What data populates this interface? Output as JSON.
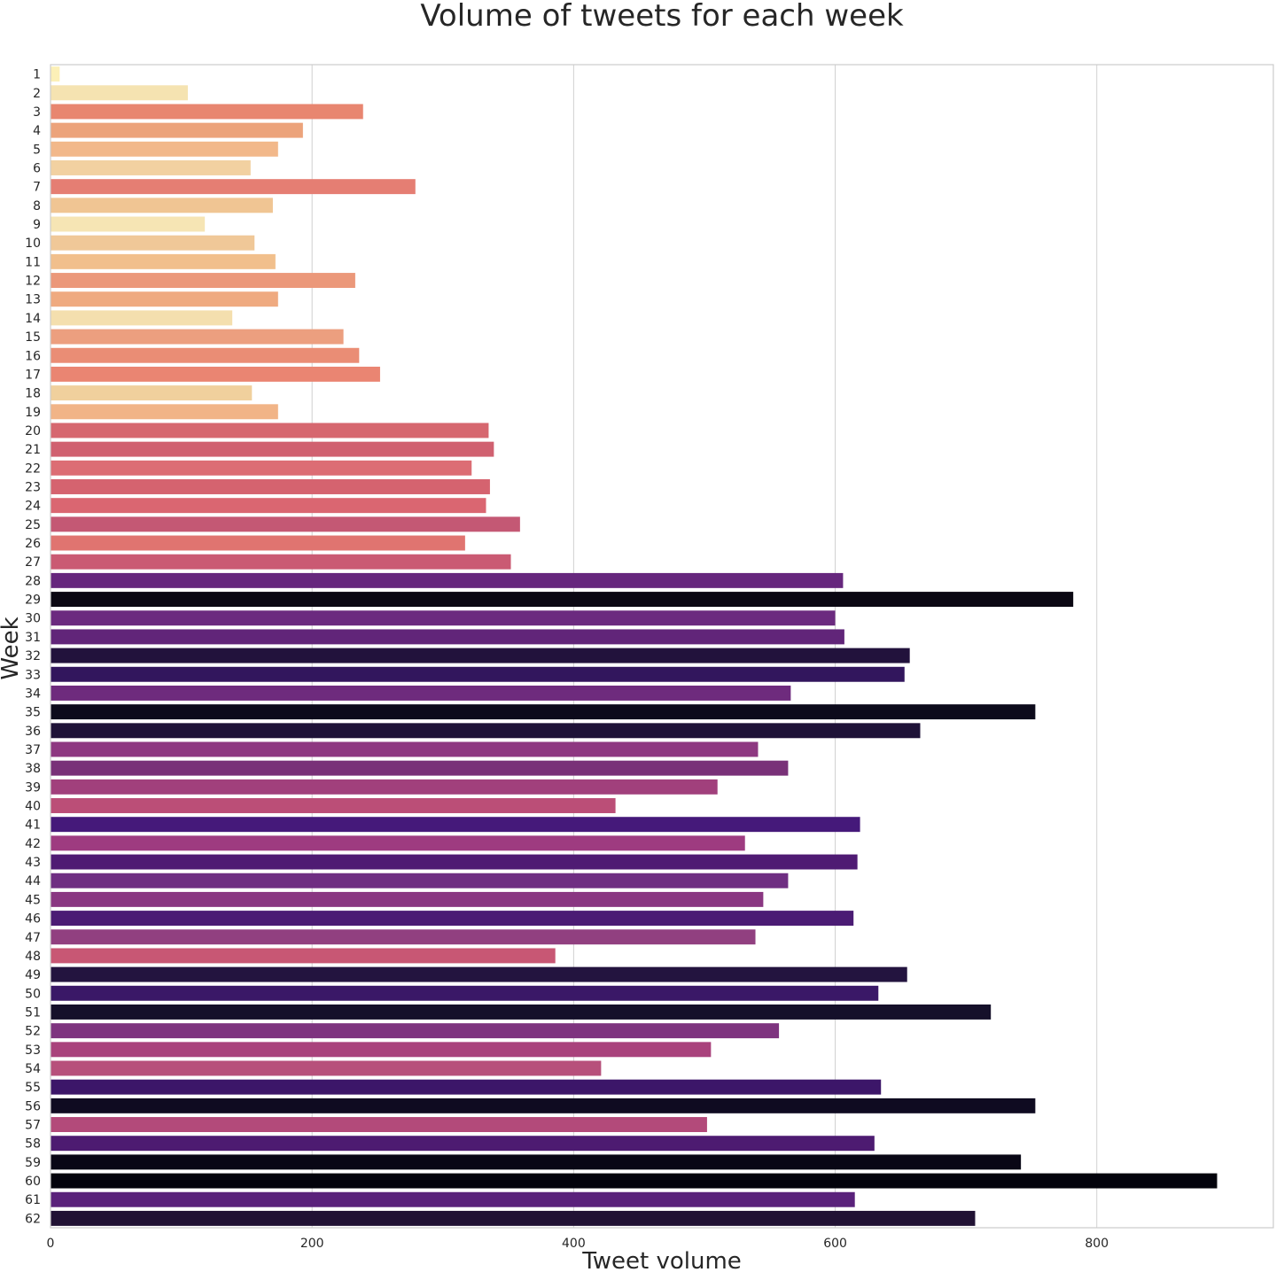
{
  "chart_data": {
    "type": "bar",
    "orientation": "horizontal",
    "title": "Volume of tweets for each week",
    "xlabel": "Tweet volume",
    "ylabel": "Week",
    "xlim": [
      0,
      935
    ],
    "xticks": [
      0,
      200,
      400,
      600,
      800
    ],
    "grid": "x",
    "legend": "none",
    "palette": "magma_r",
    "categories": [
      "1",
      "2",
      "3",
      "4",
      "5",
      "6",
      "7",
      "8",
      "9",
      "10",
      "11",
      "12",
      "13",
      "14",
      "15",
      "16",
      "17",
      "18",
      "19",
      "20",
      "21",
      "22",
      "23",
      "24",
      "25",
      "26",
      "27",
      "28",
      "29",
      "30",
      "31",
      "32",
      "33",
      "34",
      "35",
      "36",
      "37",
      "38",
      "39",
      "40",
      "41",
      "42",
      "43",
      "44",
      "45",
      "46",
      "47",
      "48",
      "49",
      "50",
      "51",
      "52",
      "53",
      "54",
      "55",
      "56",
      "57",
      "58",
      "59",
      "60",
      "61",
      "62"
    ],
    "values": [
      7,
      105,
      239,
      193,
      174,
      153,
      279,
      170,
      118,
      156,
      172,
      233,
      174,
      139,
      224,
      236,
      252,
      154,
      174,
      335,
      339,
      322,
      336,
      333,
      359,
      317,
      352,
      606,
      782,
      600,
      607,
      657,
      653,
      566,
      753,
      665,
      541,
      564,
      510,
      432,
      619,
      531,
      617,
      564,
      545,
      614,
      539,
      386,
      655,
      633,
      719,
      557,
      505,
      421,
      635,
      753,
      502,
      630,
      742,
      892,
      615,
      707
    ],
    "colors": [
      "#fcf0b7",
      "#f5e3b1",
      "#e88670",
      "#eca37b",
      "#f2b88a",
      "#f2d1a1",
      "#e57e73",
      "#f0c593",
      "#f6e5b4",
      "#f0c898",
      "#f1bf8c",
      "#eb987a",
      "#efaa80",
      "#f4dfae",
      "#ec9f7f",
      "#ea8d75",
      "#ea8572",
      "#f0d09d",
      "#f1b487",
      "#d6676f",
      "#d06170",
      "#dc6d74",
      "#d5636f",
      "#da6671",
      "#c45874",
      "#e07470",
      "#ca5a73",
      "#66277d",
      "#0b0813",
      "#6b2a7f",
      "#612579",
      "#22123c",
      "#32165d",
      "#6e2b7d",
      "#0d0b1c",
      "#1e1237",
      "#8e3881",
      "#793178",
      "#a1407c",
      "#bb4e77",
      "#45197a",
      "#9e3b80",
      "#4f1b73",
      "#6f2e82",
      "#8a3782",
      "#4b1c74",
      "#914080",
      "#c85774",
      "#23143f",
      "#3a1867",
      "#15102a",
      "#7e347f",
      "#a9427c",
      "#b7507b",
      "#3c1669",
      "#0f0b21",
      "#b34a7a",
      "#4d1b71",
      "#090715",
      "#03030c",
      "#5a227b",
      "#211234"
    ]
  }
}
